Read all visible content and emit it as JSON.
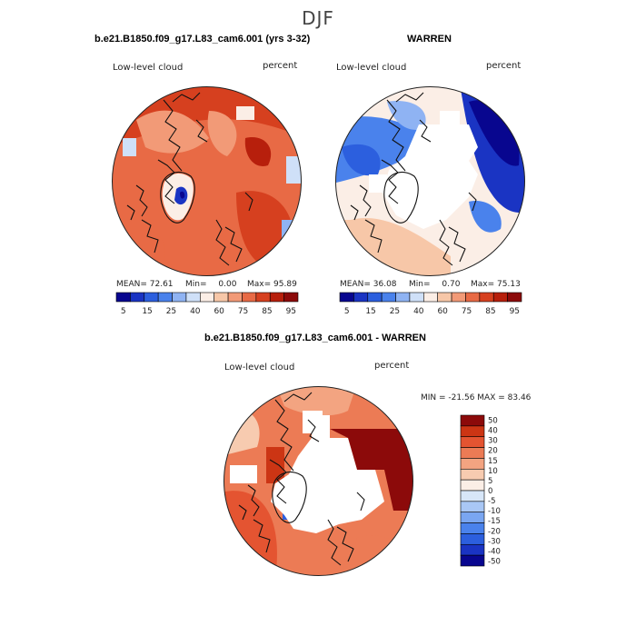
{
  "page": {
    "title": "DJF"
  },
  "colors": {
    "seq": [
      "#08068f",
      "#1a34c3",
      "#2c5fde",
      "#4a82ec",
      "#8fb3f3",
      "#cfe0f8",
      "#fbeee6",
      "#f7c7a8",
      "#f29a77",
      "#e86a45",
      "#d6401f",
      "#b71f0c",
      "#8c0a0a"
    ],
    "div": [
      "#08068f",
      "#1a34c3",
      "#2c5fde",
      "#4a82ec",
      "#7aa6f1",
      "#a9c7f5",
      "#d7e6f8",
      "#fbeee6",
      "#f7cbb0",
      "#f3a481",
      "#ec7b55",
      "#e45431",
      "#cc3514",
      "#8c0a0a"
    ],
    "coast": "#111111"
  },
  "chart_data": [
    {
      "type": "heatmap",
      "title": "b.e21.B1850.f09_g17.L83_cam6.001 (yrs 3-32)",
      "left_label": "Low-level cloud",
      "right_label": "percent",
      "stats": {
        "mean_label": "MEAN=",
        "mean": "72.61",
        "min_label": "Min=",
        "min": "0.00",
        "max_label": "Max=",
        "max": "95.89"
      },
      "colorbar": {
        "orientation": "horizontal",
        "ticks": [
          "5",
          "15",
          "25",
          "40",
          "60",
          "75",
          "85",
          "95"
        ]
      }
    },
    {
      "type": "heatmap",
      "title": "WARREN",
      "left_label": "Low-level cloud",
      "right_label": "percent",
      "stats": {
        "mean_label": "MEAN=",
        "mean": "36.08",
        "min_label": "Min=",
        "min": "0.70",
        "max_label": "Max=",
        "max": "75.13"
      },
      "colorbar": {
        "orientation": "horizontal",
        "ticks": [
          "5",
          "15",
          "25",
          "40",
          "60",
          "75",
          "85",
          "95"
        ]
      }
    },
    {
      "type": "heatmap",
      "title": "b.e21.B1850.f09_g17.L83_cam6.001 - WARREN",
      "left_label": "Low-level cloud",
      "right_label": "percent",
      "minmax": "MIN = -21.56 MAX =  83.46",
      "colorbar": {
        "orientation": "vertical",
        "labels": [
          "50",
          "40",
          "30",
          "20",
          "15",
          "10",
          "5",
          "0",
          "-5",
          "-10",
          "-15",
          "-20",
          "-30",
          "-40",
          "-50"
        ]
      }
    }
  ]
}
